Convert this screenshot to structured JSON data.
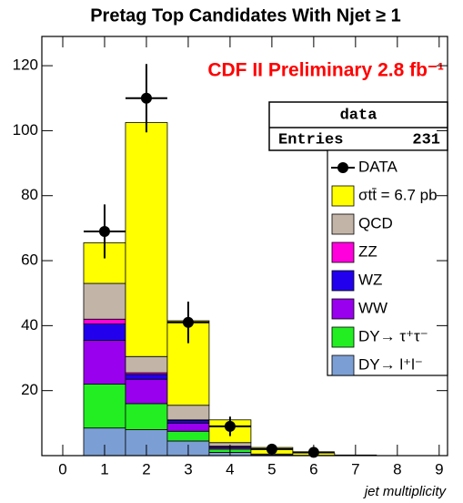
{
  "chart_data": {
    "type": "stacked-histogram",
    "title": "Pretag Top Candidates With Njet ≥ 1",
    "annotation": "CDF II Preliminary 2.8 fb⁻¹",
    "x_label": "jet multiplicity",
    "stats": {
      "name": "data",
      "entries_label": "Entries",
      "entries": 231
    },
    "x": [
      1,
      2,
      3,
      4,
      5,
      6,
      7
    ],
    "bin_width": 1,
    "xlim": [
      -0.5,
      9.2
    ],
    "xticks": [
      0,
      1,
      2,
      3,
      4,
      5,
      6,
      7,
      8,
      9
    ],
    "ylim": [
      0,
      129
    ],
    "yticks": [
      20,
      40,
      60,
      80,
      100,
      120
    ],
    "series": [
      {
        "name": "DY→ l⁺l⁻",
        "color": "#7b9fd4",
        "values": [
          8.5,
          8,
          4.5,
          1,
          0.2,
          0,
          0
        ]
      },
      {
        "name": "DY→ τ⁺τ⁻",
        "color": "#22ee22",
        "values": [
          13.5,
          8,
          3,
          1,
          0,
          0,
          0
        ]
      },
      {
        "name": "WW",
        "color": "#9900ee",
        "values": [
          13.5,
          7.5,
          2.5,
          0.5,
          0,
          0,
          0
        ]
      },
      {
        "name": "WZ",
        "color": "#2200ee",
        "values": [
          5,
          1.5,
          0.8,
          0.3,
          0,
          0,
          0
        ]
      },
      {
        "name": "ZZ",
        "color": "#ff00dd",
        "values": [
          1.5,
          0.5,
          0.2,
          0.1,
          0,
          0,
          0
        ]
      },
      {
        "name": "QCD",
        "color": "#c2b5a8",
        "values": [
          11,
          5,
          4.5,
          1.1,
          0.3,
          0.1,
          0
        ]
      },
      {
        "name": "σtt̄ = 6.7 pb",
        "color": "#ffff00",
        "values": [
          12.5,
          72,
          26,
          7,
          2,
          0.7,
          0.2
        ]
      }
    ],
    "data_series": {
      "name": "DATA",
      "color": "#000000",
      "x": [
        1,
        2,
        3,
        4,
        5,
        6
      ],
      "values": [
        69,
        110,
        41,
        9,
        2,
        1
      ],
      "errors": [
        8.3,
        10.5,
        6.4,
        3,
        1.4,
        1
      ]
    }
  }
}
